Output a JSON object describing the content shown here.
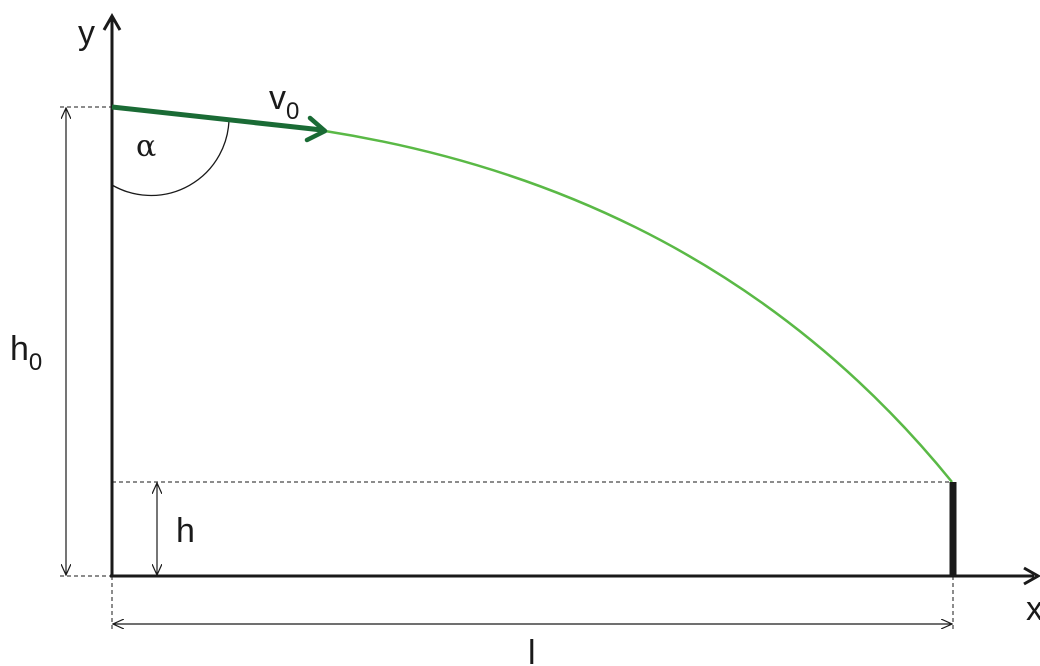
{
  "labels": {
    "y_axis": "y",
    "x_axis": "x",
    "velocity": "v",
    "velocity_sub": "0",
    "angle": "α",
    "initial_height": "h",
    "initial_height_sub": "0",
    "target_height": "h",
    "distance": "l"
  },
  "colors": {
    "axes": "#1a1a1a",
    "velocity_vector": "#1a6b35",
    "trajectory": "#5ab946",
    "dimension_lines": "#1a1a1a"
  }
}
